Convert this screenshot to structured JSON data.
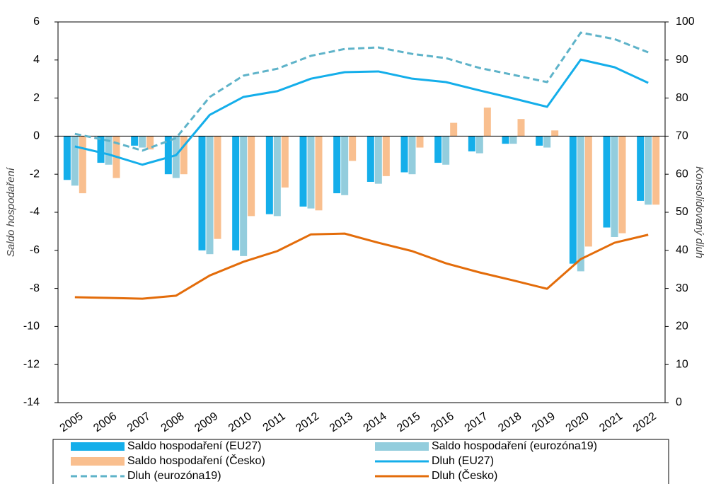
{
  "chart_data": {
    "type": "bar_line",
    "y_label": "Saldo hospodaření",
    "y2_label": "Konsolidovaný dluh",
    "categories": [
      "2005",
      "2006",
      "2007",
      "2008",
      "2009",
      "2010",
      "2011",
      "2012",
      "2013",
      "2014",
      "2015",
      "2016",
      "2017",
      "2018",
      "2019",
      "2020",
      "2021",
      "2022"
    ],
    "ylim": [
      -14,
      6
    ],
    "yticks": [
      -14,
      -12,
      -10,
      -8,
      -6,
      -4,
      -2,
      0,
      2,
      4,
      6
    ],
    "y2lim": [
      0,
      100
    ],
    "y2ticks": [
      0,
      10,
      20,
      30,
      40,
      50,
      60,
      70,
      80,
      90,
      100
    ],
    "legend": "bottom",
    "series": [
      {
        "name": "Saldo hospodaření (EU27)",
        "type": "bar",
        "color": "#14aeea",
        "values": [
          -2.3,
          -1.4,
          -0.5,
          -2.0,
          -6.0,
          -6.0,
          -4.1,
          -3.7,
          -3.0,
          -2.4,
          -1.9,
          -1.4,
          -0.8,
          -0.4,
          -0.5,
          -6.7,
          -4.8,
          -3.4
        ]
      },
      {
        "name": "Saldo hospodaření (eurozóna19)",
        "type": "bar",
        "color": "#93cddd",
        "values": [
          -2.6,
          -1.5,
          -0.6,
          -2.2,
          -6.2,
          -6.3,
          -4.2,
          -3.8,
          -3.1,
          -2.5,
          -2.0,
          -1.5,
          -0.9,
          -0.4,
          -0.6,
          -7.1,
          -5.3,
          -3.6
        ]
      },
      {
        "name": "Saldo hospodaření (Česko)",
        "type": "bar",
        "color": "#f9bf8f",
        "values": [
          -3.0,
          -2.2,
          -0.7,
          -2.0,
          -5.4,
          -4.2,
          -2.7,
          -3.9,
          -1.3,
          -2.1,
          -0.6,
          0.7,
          1.5,
          0.9,
          0.3,
          -5.8,
          -5.1,
          -3.6
        ]
      },
      {
        "name": "Dluh (EU27)",
        "type": "line",
        "axis": "y2",
        "color": "#14aeea",
        "dashed": false,
        "values": [
          67.3,
          65.2,
          62.5,
          65.0,
          75.6,
          80.3,
          81.8,
          85.1,
          86.8,
          87.0,
          85.1,
          84.2,
          82.0,
          79.9,
          77.7,
          90.1,
          88.1,
          84.0
        ]
      },
      {
        "name": "Dluh (eurozóna19)",
        "type": "line",
        "axis": "y2",
        "color": "#5eb3c9",
        "dashed": true,
        "values": [
          70.6,
          68.8,
          66.2,
          69.5,
          80.3,
          85.9,
          87.7,
          91.1,
          92.9,
          93.3,
          91.6,
          90.5,
          87.9,
          86.1,
          84.2,
          97.2,
          95.5,
          92.0
        ]
      },
      {
        "name": "Dluh (Česko)",
        "type": "line",
        "axis": "y2",
        "color": "#e36c0a",
        "dashed": false,
        "values": [
          27.7,
          27.5,
          27.3,
          28.1,
          33.4,
          37.0,
          39.8,
          44.2,
          44.4,
          42.0,
          39.8,
          36.6,
          34.2,
          32.1,
          29.9,
          37.7,
          42.0,
          44.1
        ]
      }
    ]
  }
}
